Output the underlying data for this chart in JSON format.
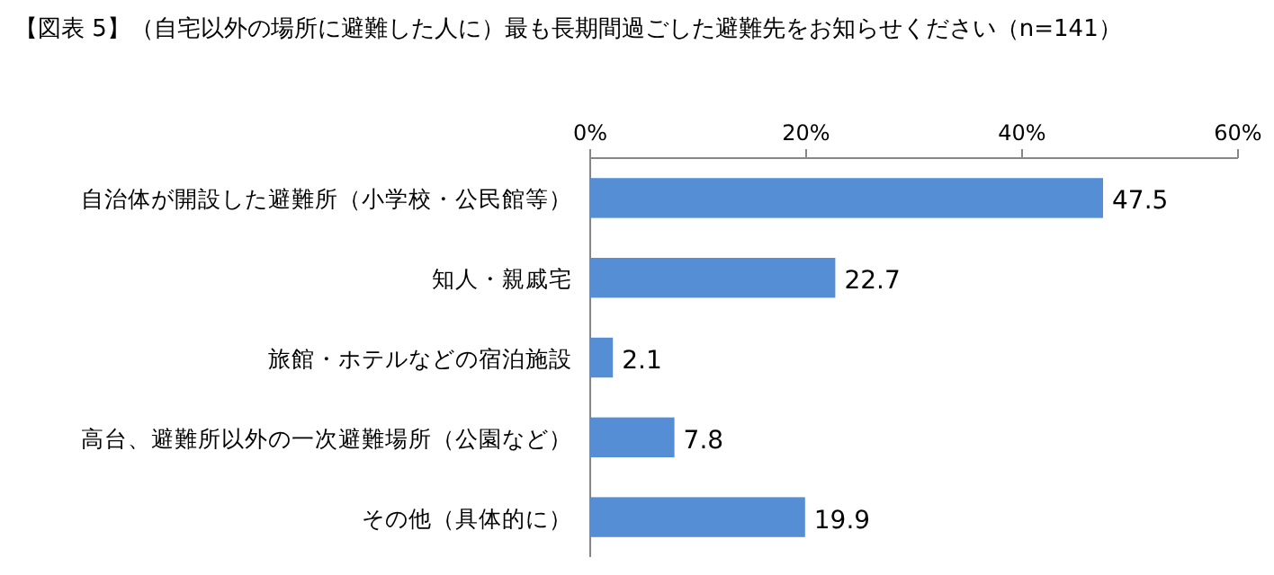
{
  "chart_data": {
    "type": "bar",
    "orientation": "horizontal",
    "title": "【図表 5】（自宅以外の場所に避難した人に）最も長期間過ごした避難先をお知らせください（n=141）",
    "categories": [
      "自治体が開設した避難所（小学校・公民館等）",
      "知人・親戚宅",
      "旅館・ホテルなどの宿泊施設",
      "高台、避難所以外の一次避難場所（公園など）",
      "その他（具体的に）"
    ],
    "values": [
      47.5,
      22.7,
      2.1,
      7.8,
      19.9
    ],
    "color": "#558ed5",
    "xlim": [
      0,
      60
    ],
    "xticks": [
      {
        "value": 0,
        "label": "0%"
      },
      {
        "value": 20,
        "label": "20%"
      },
      {
        "value": 40,
        "label": "40%"
      },
      {
        "value": 60,
        "label": "60%"
      }
    ],
    "data_labels": true,
    "grid": false
  }
}
